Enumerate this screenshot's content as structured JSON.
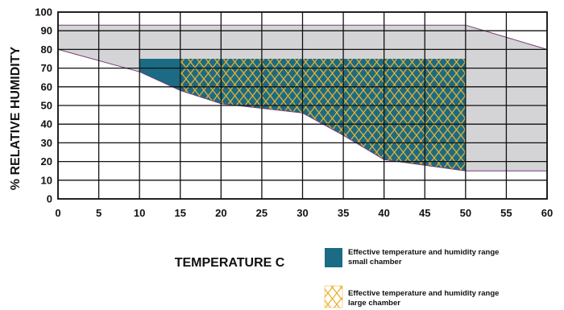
{
  "chart_data": {
    "type": "area",
    "xlabel": "TEMPERATURE C",
    "ylabel": "% RELATIVE HUMIDITY",
    "xlim": [
      0,
      60
    ],
    "ylim": [
      0,
      100
    ],
    "x_ticks": [
      0,
      5,
      10,
      15,
      20,
      25,
      30,
      35,
      40,
      45,
      50,
      55,
      60
    ],
    "y_ticks": [
      0,
      10,
      20,
      30,
      40,
      50,
      60,
      70,
      80,
      90,
      100
    ],
    "grid": true,
    "colors": {
      "outer_region": "#d4d4d6",
      "small_chamber": "#1b6b84",
      "large_chamber_hatch": "#e8b030",
      "boundary_line": "#7a3a7a"
    },
    "regions": [
      {
        "id": "outer",
        "upper": [
          [
            0,
            93
          ],
          [
            50,
            93
          ],
          [
            60,
            80
          ]
        ],
        "lower": [
          [
            0,
            80
          ],
          [
            10,
            68
          ],
          [
            15,
            58
          ],
          [
            20,
            51
          ],
          [
            30,
            46
          ],
          [
            35,
            34
          ],
          [
            40,
            21
          ],
          [
            45,
            18
          ],
          [
            50,
            15
          ],
          [
            60,
            15
          ]
        ]
      },
      {
        "id": "small",
        "upper": [
          [
            10,
            75
          ],
          [
            50,
            75
          ]
        ],
        "lower": [
          [
            10,
            68
          ],
          [
            15,
            58
          ],
          [
            20,
            51
          ],
          [
            30,
            46
          ],
          [
            35,
            34
          ],
          [
            40,
            21
          ],
          [
            45,
            18
          ],
          [
            50,
            15
          ]
        ]
      },
      {
        "id": "large",
        "upper": [
          [
            15,
            75
          ],
          [
            50,
            75
          ]
        ],
        "lower": [
          [
            15,
            58
          ],
          [
            20,
            51
          ],
          [
            30,
            46
          ],
          [
            35,
            34
          ],
          [
            40,
            21
          ],
          [
            45,
            18
          ],
          [
            50,
            15
          ]
        ]
      }
    ],
    "legend": [
      {
        "type": "solid",
        "label_line1": "Effective temperature and humidity range",
        "label_line2": "small chamber"
      },
      {
        "type": "hatch",
        "label_line1": "Effective temperature and humidity range",
        "label_line2": "large chamber"
      }
    ]
  }
}
